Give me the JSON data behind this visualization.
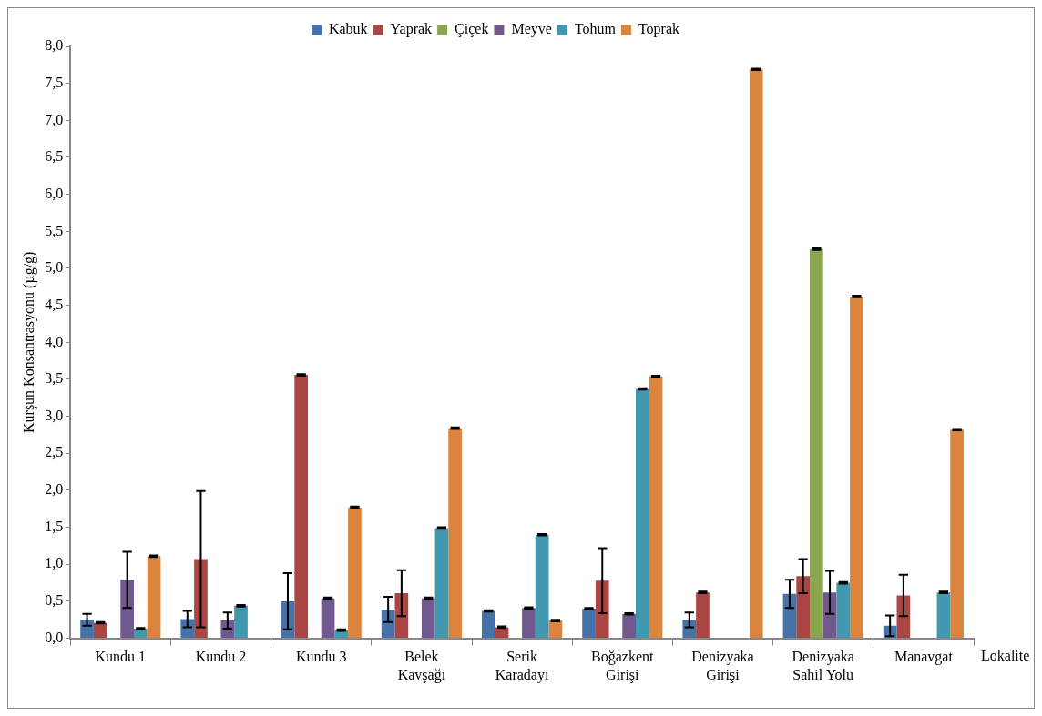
{
  "chart_data": {
    "type": "bar",
    "ylabel": "Kurşun Konsantrasyonu (µg/g)",
    "xlabel": "Lokalite",
    "categories": [
      "Kundu 1",
      "Kundu 2",
      "Kundu 3",
      "Belek Kavşağı",
      "Serik Karadayı",
      "Boğazkent Girişi",
      "Denizyaka Girişi",
      "Denizyaka Sahil Yolu",
      "Manavgat"
    ],
    "series": [
      {
        "name": "Kabuk",
        "color": "#4572a7",
        "values": [
          0.25,
          0.26,
          0.5,
          0.39,
          0.37,
          0.4,
          0.25,
          0.6,
          0.17
        ],
        "errors": [
          0.08,
          0.11,
          0.38,
          0.17,
          0.01,
          0.01,
          0.1,
          0.19,
          0.14
        ]
      },
      {
        "name": "Yaprak",
        "color": "#aa4643",
        "values": [
          0.21,
          1.07,
          3.56,
          0.61,
          0.15,
          0.78,
          0.62,
          0.84,
          0.58
        ],
        "errors": [
          0.01,
          0.92,
          0.01,
          0.31,
          0.01,
          0.44,
          0.01,
          0.23,
          0.28
        ]
      },
      {
        "name": "Çiçek",
        "color": "#89a54e",
        "values": [
          null,
          null,
          null,
          null,
          null,
          null,
          null,
          5.26,
          null
        ],
        "errors": [
          null,
          null,
          null,
          null,
          null,
          null,
          null,
          0.01,
          null
        ]
      },
      {
        "name": "Meyve",
        "color": "#71588f",
        "values": [
          0.79,
          0.24,
          0.54,
          0.54,
          0.41,
          0.33,
          null,
          0.62,
          null
        ],
        "errors": [
          0.38,
          0.11,
          0.01,
          0.01,
          0.01,
          0.01,
          null,
          0.29,
          null
        ]
      },
      {
        "name": "Tohum",
        "color": "#4198af",
        "values": [
          0.13,
          0.44,
          0.11,
          1.49,
          1.4,
          3.37,
          null,
          0.75,
          0.62
        ],
        "errors": [
          0.01,
          0.01,
          0.01,
          0.01,
          0.01,
          0.01,
          null,
          0.01,
          0.01
        ]
      },
      {
        "name": "Toprak",
        "color": "#db843d",
        "values": [
          1.11,
          null,
          1.77,
          2.84,
          0.24,
          3.54,
          7.69,
          4.62,
          2.82
        ],
        "errors": [
          0.01,
          null,
          0.01,
          0.01,
          0.01,
          0.01,
          0.01,
          0.01,
          0.01
        ]
      }
    ],
    "ylim": [
      0,
      8
    ],
    "yticks": [
      {
        "value": 0,
        "label": "0,0"
      },
      {
        "value": 0.5,
        "label": "0,5"
      },
      {
        "value": 1,
        "label": "1,0"
      },
      {
        "value": 1.5,
        "label": "1,5"
      },
      {
        "value": 2,
        "label": "2,0"
      },
      {
        "value": 2.5,
        "label": "2,5"
      },
      {
        "value": 3,
        "label": "3,0"
      },
      {
        "value": 3.5,
        "label": "3,5"
      },
      {
        "value": 4,
        "label": "4,0"
      },
      {
        "value": 4.5,
        "label": "4,5"
      },
      {
        "value": 5,
        "label": "5,0"
      },
      {
        "value": 5.5,
        "label": "5,5"
      },
      {
        "value": 6,
        "label": "6,0"
      },
      {
        "value": 6.5,
        "label": "6,5"
      },
      {
        "value": 7,
        "label": "7,0"
      },
      {
        "value": 7.5,
        "label": "7,5"
      },
      {
        "value": 8,
        "label": "8,0"
      }
    ],
    "grid": false,
    "legend": "top"
  }
}
